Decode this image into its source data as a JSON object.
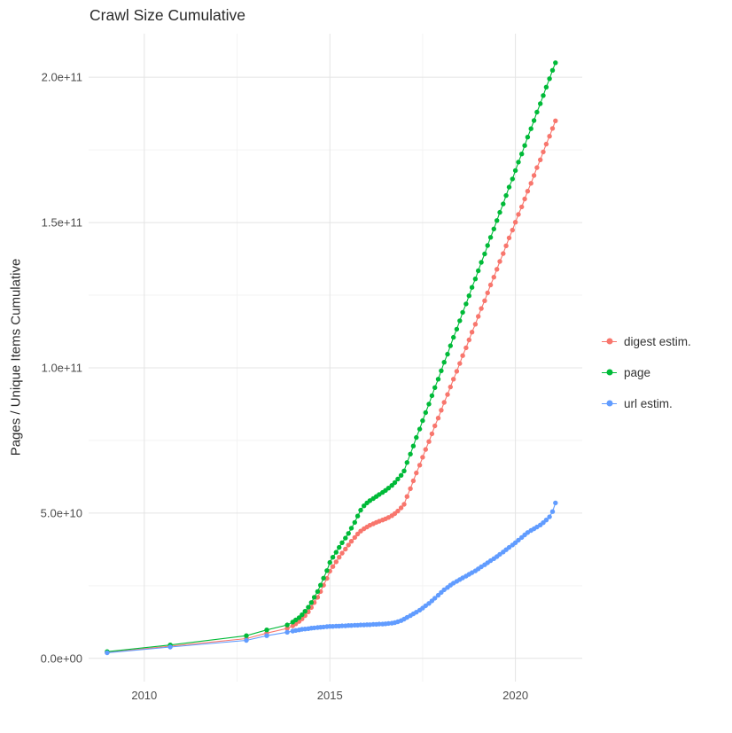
{
  "theme": {
    "background": "#FFFFFF",
    "title_color": "#2B2B2B",
    "axis_text_color": "#4D4D4D",
    "legend_text_color": "#333333"
  },
  "chart_data": {
    "type": "scatter",
    "title": "Crawl Size Cumulative",
    "xlabel": "",
    "ylabel": "Pages / Unique Items Cumulative",
    "legend_position": "right",
    "xlim": [
      2008.5,
      2021.8
    ],
    "ylim": [
      -8000000000.0,
      215000000000.0
    ],
    "x_ticks": [
      {
        "value": 2010,
        "label": "2010"
      },
      {
        "value": 2015,
        "label": "2015"
      },
      {
        "value": 2020,
        "label": "2020"
      }
    ],
    "y_ticks": [
      {
        "value": 0,
        "label": "0.0e+00"
      },
      {
        "value": 50000000000.0,
        "label": "5.0e+10"
      },
      {
        "value": 100000000000.0,
        "label": "1.0e+11"
      },
      {
        "value": 150000000000.0,
        "label": "1.5e+11"
      },
      {
        "value": 200000000000.0,
        "label": "2.0e+11"
      }
    ],
    "grid": {
      "major_color": "#E4E4E4",
      "minor_color": "#F3F3F3",
      "x_minor": [
        2012.5,
        2017.5
      ],
      "y_minor": [
        25000000000.0,
        75000000000.0,
        125000000000.0,
        175000000000.0
      ]
    },
    "y_scale": 1000000000.0,
    "x": [
      2009.0,
      2010.7,
      2012.75,
      2013.3,
      2013.85,
      2014.0,
      2014.08,
      2014.17,
      2014.25,
      2014.33,
      2014.42,
      2014.5,
      2014.58,
      2014.67,
      2014.75,
      2014.83,
      2014.92,
      2015.0,
      2015.08,
      2015.17,
      2015.25,
      2015.33,
      2015.42,
      2015.5,
      2015.58,
      2015.67,
      2015.75,
      2015.83,
      2015.92,
      2016.0,
      2016.08,
      2016.17,
      2016.25,
      2016.33,
      2016.42,
      2016.5,
      2016.58,
      2016.67,
      2016.75,
      2016.83,
      2016.92,
      2017.0,
      2017.08,
      2017.17,
      2017.25,
      2017.33,
      2017.42,
      2017.5,
      2017.58,
      2017.67,
      2017.75,
      2017.83,
      2017.92,
      2018.0,
      2018.08,
      2018.17,
      2018.25,
      2018.33,
      2018.42,
      2018.5,
      2018.58,
      2018.67,
      2018.75,
      2018.83,
      2018.92,
      2019.0,
      2019.08,
      2019.17,
      2019.25,
      2019.33,
      2019.42,
      2019.5,
      2019.58,
      2019.67,
      2019.75,
      2019.83,
      2019.92,
      2020.0,
      2020.08,
      2020.17,
      2020.25,
      2020.33,
      2020.42,
      2020.5,
      2020.58,
      2020.67,
      2020.75,
      2020.83,
      2020.92,
      2021.0,
      2021.08
    ],
    "series": [
      {
        "name": "digest estim.",
        "color": "#F8766D",
        "values": [
          2.0,
          4.2,
          6.8,
          8.7,
          10.3,
          11.2,
          11.9,
          12.7,
          13.6,
          14.7,
          16.0,
          17.5,
          19.2,
          21.0,
          23.0,
          25.2,
          27.5,
          30.0,
          31.6,
          33.2,
          34.8,
          36.2,
          37.6,
          39.0,
          40.3,
          41.6,
          42.8,
          43.8,
          44.6,
          45.2,
          45.8,
          46.3,
          46.8,
          47.2,
          47.6,
          48.0,
          48.5,
          49.1,
          49.8,
          50.7,
          51.8,
          53.0,
          55.7,
          58.4,
          61.1,
          63.8,
          66.5,
          69.2,
          71.9,
          74.6,
          77.3,
          80.0,
          82.7,
          85.4,
          88.1,
          90.8,
          93.4,
          96.1,
          98.8,
          101.5,
          104.2,
          106.9,
          109.6,
          112.3,
          115.0,
          117.7,
          120.4,
          123.1,
          125.8,
          128.5,
          131.2,
          133.9,
          136.6,
          139.3,
          142.0,
          144.7,
          147.4,
          150.1,
          152.8,
          155.4,
          158.1,
          160.8,
          163.5,
          166.2,
          168.9,
          171.6,
          174.3,
          177.0,
          179.7,
          182.4,
          185.0
        ]
      },
      {
        "name": "page",
        "color": "#00BA38",
        "values": [
          2.3,
          4.6,
          7.8,
          9.8,
          11.5,
          12.5,
          13.2,
          14.0,
          15.0,
          16.2,
          17.6,
          19.2,
          21.0,
          23.0,
          25.2,
          27.6,
          30.2,
          33.0,
          34.8,
          36.5,
          38.2,
          39.8,
          41.4,
          43.0,
          44.8,
          46.8,
          49.0,
          51.0,
          52.5,
          53.5,
          54.3,
          55.0,
          55.7,
          56.4,
          57.1,
          57.8,
          58.6,
          59.5,
          60.5,
          61.7,
          63.0,
          64.5,
          67.4,
          70.3,
          73.1,
          76.0,
          78.9,
          81.8,
          84.6,
          87.5,
          90.4,
          93.2,
          96.1,
          99.0,
          101.9,
          104.7,
          107.6,
          110.5,
          113.3,
          116.2,
          119.1,
          122.0,
          124.8,
          127.7,
          130.6,
          133.4,
          136.3,
          139.2,
          142.1,
          144.9,
          147.8,
          150.7,
          153.5,
          156.4,
          159.3,
          162.2,
          165.0,
          167.9,
          170.8,
          173.6,
          176.5,
          179.4,
          182.3,
          185.1,
          188.0,
          190.9,
          193.7,
          196.6,
          199.5,
          202.4,
          205.0
        ]
      },
      {
        "name": "url estim.",
        "color": "#619CFF",
        "values": [
          1.9,
          3.9,
          6.2,
          7.8,
          9.0,
          9.4,
          9.6,
          9.8,
          10.0,
          10.1,
          10.2,
          10.4,
          10.5,
          10.6,
          10.7,
          10.8,
          10.9,
          11.0,
          11.0,
          11.1,
          11.1,
          11.2,
          11.2,
          11.3,
          11.3,
          11.4,
          11.4,
          11.5,
          11.5,
          11.6,
          11.6,
          11.7,
          11.7,
          11.8,
          11.8,
          11.9,
          12.0,
          12.1,
          12.3,
          12.6,
          13.0,
          13.5,
          14.1,
          14.7,
          15.3,
          15.9,
          16.6,
          17.3,
          18.1,
          18.9,
          19.8,
          20.7,
          21.7,
          22.7,
          23.6,
          24.4,
          25.2,
          25.9,
          26.5,
          27.1,
          27.7,
          28.3,
          28.9,
          29.5,
          30.1,
          30.8,
          31.5,
          32.2,
          32.9,
          33.6,
          34.3,
          35.0,
          35.8,
          36.6,
          37.4,
          38.2,
          39.0,
          39.8,
          40.7,
          41.6,
          42.5,
          43.3,
          44.0,
          44.6,
          45.2,
          45.9,
          46.7,
          47.6,
          48.7,
          50.5,
          53.5
        ]
      }
    ]
  }
}
